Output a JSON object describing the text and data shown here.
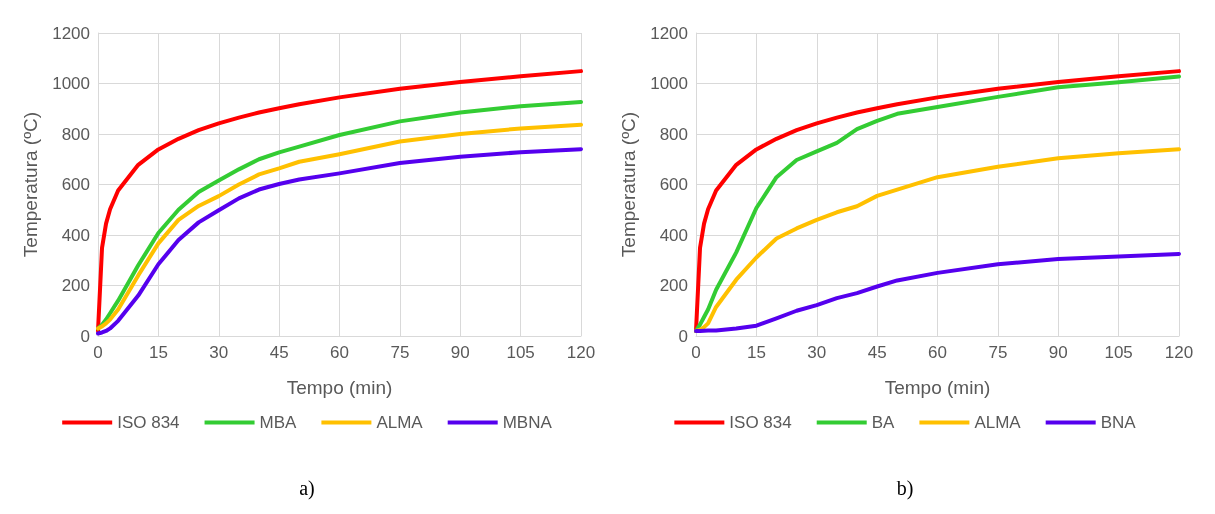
{
  "chart_data": [
    {
      "type": "line",
      "xlabel": "Tempo (min)",
      "ylabel": "Temperatura (ºC)",
      "x": [
        0,
        1,
        2,
        3,
        5,
        10,
        15,
        20,
        25,
        30,
        35,
        40,
        45,
        50,
        60,
        75,
        90,
        105,
        120
      ],
      "xlim": [
        0,
        120
      ],
      "xticks": [
        0,
        15,
        30,
        45,
        60,
        75,
        90,
        105,
        120
      ],
      "ylim": [
        0,
        1200
      ],
      "yticks": [
        0,
        200,
        400,
        600,
        800,
        1000,
        1200
      ],
      "grid": true,
      "legend": "bottom",
      "marker": "none",
      "line_style": "solid",
      "annotations": [
        "a)"
      ],
      "series": [
        {
          "name": "ISO 834",
          "color": "#ff0000",
          "values": [
            20,
            349,
            445,
            502,
            576,
            678,
            739,
            781,
            815,
            842,
            865,
            885,
            902,
            918,
            945,
            979,
            1006,
            1029,
            1049
          ]
        },
        {
          "name": "MBA",
          "color": "#33cc33",
          "values": [
            30,
            45,
            65,
            90,
            140,
            280,
            408,
            500,
            570,
            616,
            660,
            700,
            727,
            750,
            796,
            850,
            885,
            910,
            927
          ]
        },
        {
          "name": "ALMA",
          "color": "#ffc000",
          "values": [
            30,
            38,
            50,
            65,
            105,
            240,
            367,
            460,
            515,
            554,
            600,
            640,
            664,
            690,
            720,
            770,
            800,
            822,
            837
          ]
        },
        {
          "name": "MBNA",
          "color": "#5500ee",
          "values": [
            10,
            14,
            20,
            30,
            60,
            160,
            284,
            380,
            450,
            498,
            545,
            580,
            602,
            620,
            644,
            685,
            710,
            728,
            740
          ]
        }
      ]
    },
    {
      "type": "line",
      "xlabel": "Tempo (min)",
      "ylabel": "Temperatura (ºC)",
      "x": [
        0,
        1,
        2,
        3,
        5,
        10,
        15,
        20,
        25,
        30,
        35,
        40,
        45,
        50,
        60,
        75,
        90,
        105,
        120
      ],
      "xlim": [
        0,
        120
      ],
      "xticks": [
        0,
        15,
        30,
        45,
        60,
        75,
        90,
        105,
        120
      ],
      "ylim": [
        0,
        1200
      ],
      "yticks": [
        0,
        200,
        400,
        600,
        800,
        1000,
        1200
      ],
      "grid": true,
      "legend": "bottom",
      "marker": "none",
      "line_style": "solid",
      "annotations": [
        "b)"
      ],
      "series": [
        {
          "name": "ISO 834",
          "color": "#ff0000",
          "values": [
            20,
            349,
            445,
            502,
            576,
            678,
            739,
            781,
            815,
            842,
            865,
            885,
            902,
            918,
            945,
            979,
            1006,
            1029,
            1049
          ]
        },
        {
          "name": "BA",
          "color": "#33cc33",
          "values": [
            20,
            45,
            75,
            105,
            183,
            331,
            507,
            629,
            697,
            731,
            765,
            819,
            852,
            880,
            907,
            947,
            985,
            1005,
            1028
          ]
        },
        {
          "name": "ALMA",
          "color": "#ffc000",
          "values": [
            20,
            25,
            35,
            50,
            115,
            223,
            311,
            386,
            426,
            460,
            490,
            514,
            555,
            580,
            629,
            670,
            704,
            724,
            740
          ]
        },
        {
          "name": "BNA",
          "color": "#5500ee",
          "values": [
            20,
            20,
            21,
            22,
            22,
            30,
            41,
            70,
            100,
            122,
            150,
            170,
            196,
            220,
            250,
            284,
            305,
            315,
            325
          ]
        }
      ]
    }
  ]
}
